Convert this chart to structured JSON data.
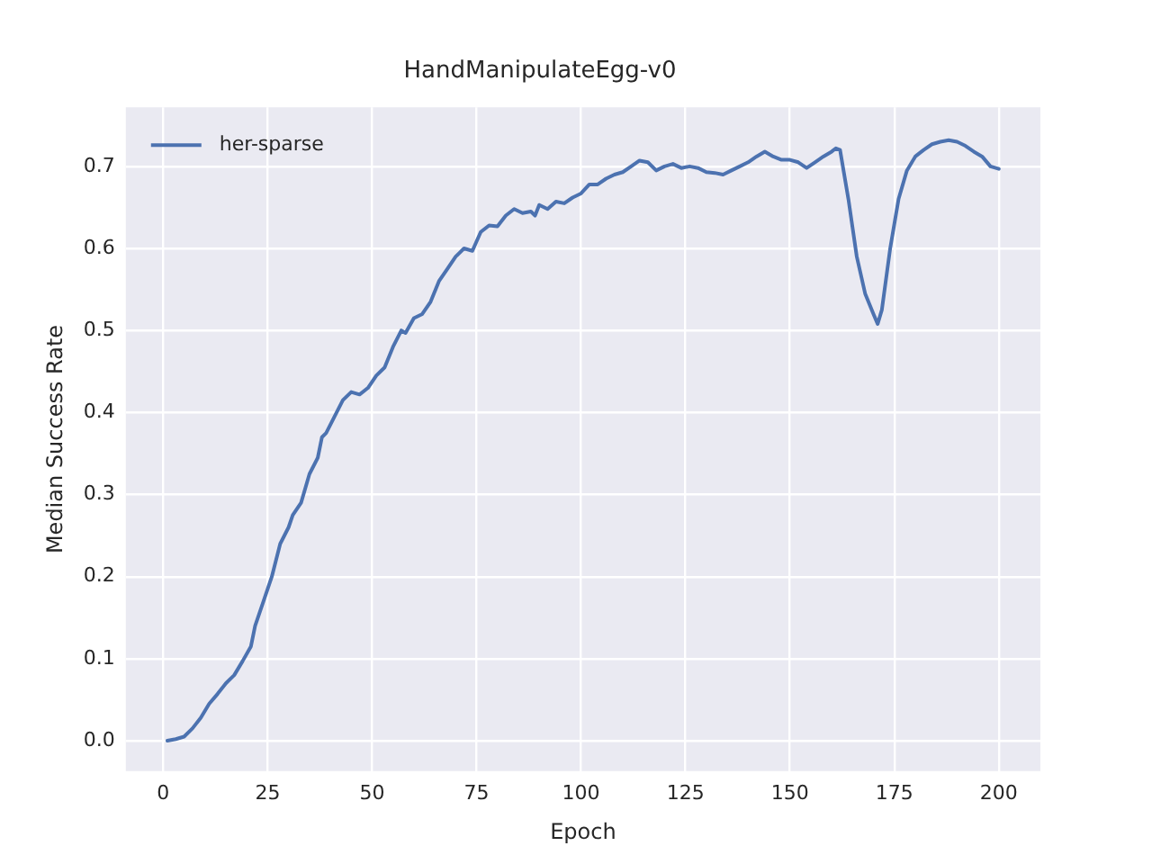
{
  "chart_data": {
    "type": "line",
    "title": "HandManipulateEgg-v0",
    "xlabel": "Epoch",
    "ylabel": "Median Success Rate",
    "xlim": [
      -8.95,
      209.95
    ],
    "xticks": [
      0,
      25,
      50,
      75,
      100,
      125,
      150,
      175,
      200
    ],
    "ylim": [
      -0.037,
      0.772
    ],
    "yticks": [
      {
        "value": 0,
        "label": "0.0"
      },
      0.1,
      0.2,
      0.3,
      0.4,
      0.5,
      0.6,
      0.7
    ],
    "grid": true,
    "legend": "top left",
    "marker": "none",
    "line_style": "solid",
    "series": [
      {
        "name": "her-sparse",
        "color": "#4c72b0",
        "x": [
          1,
          3,
          5,
          7,
          9,
          11,
          13,
          15,
          17,
          19,
          21,
          22,
          24,
          26,
          28,
          30,
          31,
          33,
          35,
          37,
          38,
          39,
          41,
          43,
          45,
          47,
          49,
          51,
          53,
          55,
          57,
          58,
          60,
          62,
          64,
          66,
          68,
          70,
          72,
          74,
          76,
          78,
          80,
          82,
          84,
          86,
          88,
          89,
          90,
          92,
          94,
          96,
          98,
          100,
          102,
          104,
          106,
          108,
          110,
          112,
          114,
          116,
          118,
          120,
          122,
          124,
          126,
          128,
          130,
          132,
          134,
          136,
          138,
          140,
          142,
          144,
          146,
          148,
          150,
          152,
          154,
          156,
          158,
          160,
          161,
          162,
          164,
          166,
          168,
          170,
          171,
          172,
          174,
          176,
          178,
          180,
          182,
          184,
          186,
          188,
          190,
          192,
          194,
          196,
          198,
          200
        ],
        "values": [
          0.0,
          0.002,
          0.005,
          0.015,
          0.028,
          0.045,
          0.057,
          0.07,
          0.08,
          0.097,
          0.115,
          0.14,
          0.17,
          0.2,
          0.24,
          0.26,
          0.275,
          0.29,
          0.325,
          0.345,
          0.37,
          0.375,
          0.395,
          0.415,
          0.425,
          0.422,
          0.43,
          0.445,
          0.455,
          0.48,
          0.5,
          0.497,
          0.515,
          0.52,
          0.535,
          0.56,
          0.575,
          0.59,
          0.6,
          0.597,
          0.62,
          0.628,
          0.627,
          0.64,
          0.648,
          0.643,
          0.645,
          0.64,
          0.653,
          0.648,
          0.657,
          0.655,
          0.662,
          0.667,
          0.678,
          0.678,
          0.685,
          0.69,
          0.693,
          0.7,
          0.707,
          0.705,
          0.695,
          0.7,
          0.703,
          0.698,
          0.7,
          0.698,
          0.693,
          0.692,
          0.69,
          0.695,
          0.7,
          0.705,
          0.712,
          0.718,
          0.712,
          0.708,
          0.708,
          0.705,
          0.698,
          0.705,
          0.712,
          0.718,
          0.722,
          0.72,
          0.66,
          0.59,
          0.545,
          0.52,
          0.508,
          0.525,
          0.6,
          0.66,
          0.695,
          0.712,
          0.72,
          0.727,
          0.73,
          0.732,
          0.73,
          0.725,
          0.718,
          0.712,
          0.7,
          0.697
        ]
      }
    ]
  }
}
